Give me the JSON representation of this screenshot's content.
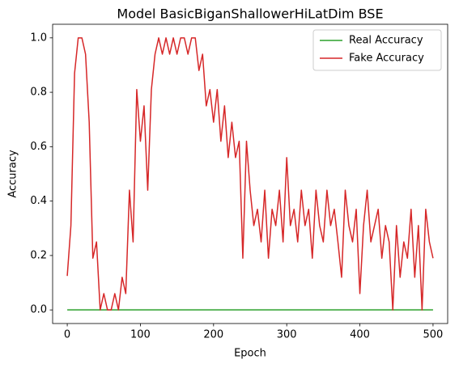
{
  "chart_data": {
    "type": "line",
    "title": "Model BasicBiganShallowerHiLatDim BSE",
    "xlabel": "Epoch",
    "ylabel": "Accuracy",
    "x": [
      0,
      5,
      10,
      15,
      20,
      25,
      30,
      35,
      40,
      45,
      50,
      55,
      60,
      65,
      70,
      75,
      80,
      85,
      90,
      95,
      100,
      105,
      110,
      115,
      120,
      125,
      130,
      135,
      140,
      145,
      150,
      155,
      160,
      165,
      170,
      175,
      180,
      185,
      190,
      195,
      200,
      205,
      210,
      215,
      220,
      225,
      230,
      235,
      240,
      245,
      250,
      255,
      260,
      265,
      270,
      275,
      280,
      285,
      290,
      295,
      300,
      305,
      310,
      315,
      320,
      325,
      330,
      335,
      340,
      345,
      350,
      355,
      360,
      365,
      370,
      375,
      380,
      385,
      390,
      395,
      400,
      405,
      410,
      415,
      420,
      425,
      430,
      435,
      440,
      445,
      450,
      455,
      460,
      465,
      470,
      475,
      480,
      485,
      490,
      495,
      500
    ],
    "series": [
      {
        "name": "Real Accuracy",
        "color": "#2ca02c",
        "values": [
          0,
          0,
          0,
          0,
          0,
          0,
          0,
          0,
          0,
          0,
          0,
          0,
          0,
          0,
          0,
          0,
          0,
          0,
          0,
          0,
          0,
          0,
          0,
          0,
          0,
          0,
          0,
          0,
          0,
          0,
          0,
          0,
          0,
          0,
          0,
          0,
          0,
          0,
          0,
          0,
          0,
          0,
          0,
          0,
          0,
          0,
          0,
          0,
          0,
          0,
          0,
          0,
          0,
          0,
          0,
          0,
          0,
          0,
          0,
          0,
          0,
          0,
          0,
          0,
          0,
          0,
          0,
          0,
          0,
          0,
          0,
          0,
          0,
          0,
          0,
          0,
          0,
          0,
          0,
          0,
          0,
          0,
          0,
          0,
          0,
          0,
          0,
          0,
          0,
          0,
          0,
          0,
          0,
          0,
          0,
          0,
          0,
          0,
          0,
          0,
          0
        ]
      },
      {
        "name": "Fake Accuracy",
        "color": "#d62728",
        "values": [
          0.125,
          0.31,
          0.87,
          1.0,
          1.0,
          0.94,
          0.69,
          0.19,
          0.25,
          0.0,
          0.06,
          0.0,
          0.0,
          0.06,
          0.0,
          0.12,
          0.06,
          0.44,
          0.25,
          0.81,
          0.62,
          0.75,
          0.44,
          0.81,
          0.94,
          1.0,
          0.94,
          1.0,
          0.94,
          1.0,
          0.94,
          1.0,
          1.0,
          0.94,
          1.0,
          1.0,
          0.88,
          0.94,
          0.75,
          0.81,
          0.69,
          0.81,
          0.62,
          0.75,
          0.56,
          0.69,
          0.56,
          0.62,
          0.19,
          0.62,
          0.44,
          0.31,
          0.37,
          0.25,
          0.44,
          0.19,
          0.37,
          0.31,
          0.44,
          0.25,
          0.56,
          0.31,
          0.37,
          0.25,
          0.44,
          0.31,
          0.37,
          0.19,
          0.44,
          0.31,
          0.25,
          0.44,
          0.31,
          0.37,
          0.25,
          0.12,
          0.44,
          0.31,
          0.25,
          0.37,
          0.06,
          0.31,
          0.44,
          0.25,
          0.31,
          0.37,
          0.19,
          0.31,
          0.25,
          0.0,
          0.31,
          0.12,
          0.25,
          0.19,
          0.37,
          0.12,
          0.31,
          0.0,
          0.37,
          0.25,
          0.19
        ]
      }
    ],
    "xlim": [
      -20,
      520
    ],
    "xticks": [
      0,
      100,
      200,
      300,
      400,
      500
    ],
    "ylim": [
      -0.05,
      1.05
    ],
    "yticks": [
      {
        "value": 0.0,
        "label": "0.0"
      },
      0.2,
      0.4,
      0.6,
      0.8,
      {
        "value": 1.0,
        "label": "1.0"
      }
    ],
    "legend": "upper right",
    "grid": false
  }
}
